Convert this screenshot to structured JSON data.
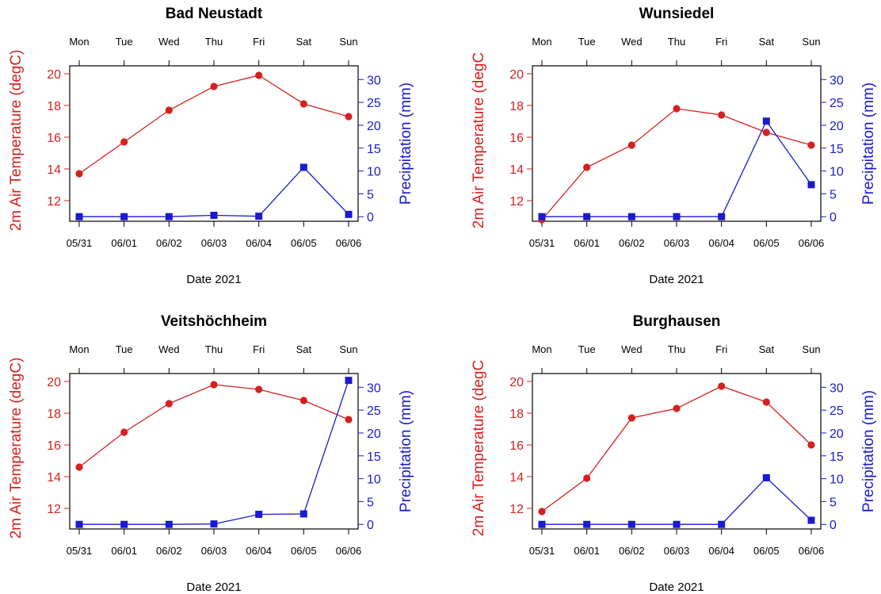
{
  "colors": {
    "temperature": "#d62020",
    "precipitation": "#1a1ad0",
    "axis": "#000000"
  },
  "chart_data": [
    {
      "type": "line",
      "title": "Bad Neustadt",
      "x": [
        "05/31",
        "06/01",
        "06/02",
        "06/03",
        "06/04",
        "06/05",
        "06/06"
      ],
      "top_tick_labels": [
        "Mon",
        "Tue",
        "Wed",
        "Thu",
        "Fri",
        "Sat",
        "Sun"
      ],
      "xlabel": "Date 2021",
      "ylabel_left": "2m Air Temperature (degC)",
      "ylabel_right": "Precipitation (mm)",
      "yticks_left": [
        12,
        14,
        16,
        18,
        20
      ],
      "yticks_right": [
        0,
        5,
        10,
        15,
        20,
        25,
        30
      ],
      "ylim_left": [
        10.7,
        20.5
      ],
      "ylim_right": [
        -1,
        33
      ],
      "series": [
        {
          "name": "2m Air Temperature (degC)",
          "axis": "left",
          "marker": "circle",
          "values": [
            13.7,
            15.7,
            17.7,
            19.2,
            19.9,
            18.1,
            17.3
          ]
        },
        {
          "name": "Precipitation (mm)",
          "axis": "right",
          "marker": "square",
          "values": [
            0,
            0,
            0,
            0.3,
            0.1,
            10.8,
            0.5
          ]
        }
      ]
    },
    {
      "type": "line",
      "title": "Wunsiedel",
      "x": [
        "05/31",
        "06/01",
        "06/02",
        "06/03",
        "06/04",
        "06/05",
        "06/06"
      ],
      "top_tick_labels": [
        "Mon",
        "Tue",
        "Wed",
        "Thu",
        "Fri",
        "Sat",
        "Sun"
      ],
      "xlabel": "Date 2021",
      "ylabel_left": "2m Air Temperature (degC",
      "ylabel_right": "Precipitation (mm)",
      "yticks_left": [
        12,
        14,
        16,
        18,
        20
      ],
      "yticks_right": [
        0,
        5,
        10,
        15,
        20,
        25,
        30
      ],
      "ylim_left": [
        10.7,
        20.5
      ],
      "ylim_right": [
        -1,
        33
      ],
      "series": [
        {
          "name": "2m Air Temperature (degC",
          "axis": "left",
          "marker": "circle",
          "values": [
            10.8,
            14.1,
            15.5,
            17.8,
            17.4,
            16.3,
            15.5
          ]
        },
        {
          "name": "Precipitation (mm)",
          "axis": "right",
          "marker": "square",
          "values": [
            0,
            0,
            0,
            0,
            0,
            20.9,
            7.0
          ]
        }
      ]
    },
    {
      "type": "line",
      "title": "Veitshöchheim",
      "x": [
        "05/31",
        "06/01",
        "06/02",
        "06/03",
        "06/04",
        "06/05",
        "06/06"
      ],
      "top_tick_labels": [
        "Mon",
        "Tue",
        "Wed",
        "Thu",
        "Fri",
        "Sat",
        "Sun"
      ],
      "xlabel": "Date 2021",
      "ylabel_left": "2m Air Temperature (degC)",
      "ylabel_right": "Precipitation (mm)",
      "yticks_left": [
        12,
        14,
        16,
        18,
        20
      ],
      "yticks_right": [
        0,
        5,
        10,
        15,
        20,
        25,
        30
      ],
      "ylim_left": [
        10.7,
        20.5
      ],
      "ylim_right": [
        -1,
        33
      ],
      "series": [
        {
          "name": "2m Air Temperature (degC)",
          "axis": "left",
          "marker": "circle",
          "values": [
            14.6,
            16.8,
            18.6,
            19.8,
            19.5,
            18.8,
            17.6
          ]
        },
        {
          "name": "Precipitation (mm)",
          "axis": "right",
          "marker": "square",
          "values": [
            0,
            0,
            0,
            0.1,
            2.2,
            2.3,
            31.5
          ]
        }
      ]
    },
    {
      "type": "line",
      "title": "Burghausen",
      "x": [
        "05/31",
        "06/01",
        "06/02",
        "06/03",
        "06/04",
        "06/05",
        "06/06"
      ],
      "top_tick_labels": [
        "Mon",
        "Tue",
        "Wed",
        "Thu",
        "Fri",
        "Sat",
        "Sun"
      ],
      "xlabel": "Date 2021",
      "ylabel_left": "2m Air Temperature (degC",
      "ylabel_right": "Precipitation (mm)",
      "yticks_left": [
        12,
        14,
        16,
        18,
        20
      ],
      "yticks_right": [
        0,
        5,
        10,
        15,
        20,
        25,
        30
      ],
      "ylim_left": [
        10.7,
        20.5
      ],
      "ylim_right": [
        -1,
        33
      ],
      "series": [
        {
          "name": "2m Air Temperature (degC",
          "axis": "left",
          "marker": "circle",
          "values": [
            11.8,
            13.9,
            17.7,
            18.3,
            19.7,
            18.7,
            16.0
          ]
        },
        {
          "name": "Precipitation (mm)",
          "axis": "right",
          "marker": "square",
          "values": [
            0,
            0,
            0,
            0,
            0,
            10.2,
            0.9
          ]
        }
      ]
    }
  ]
}
